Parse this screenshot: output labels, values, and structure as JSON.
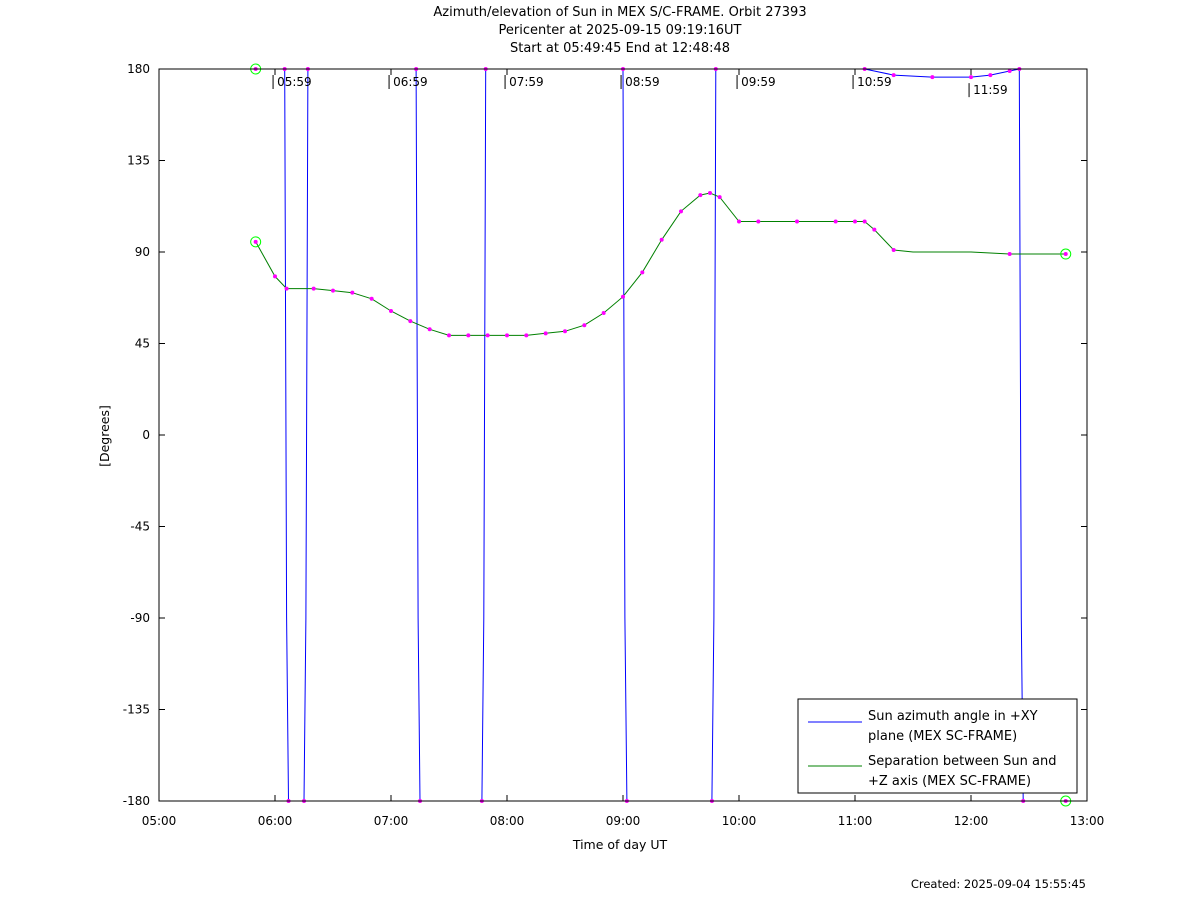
{
  "titles": [
    "Azimuth/elevation of Sun in MEX S/C-FRAME.  Orbit 27393",
    "Pericenter at 2025-09-15 09:19:16UT",
    "Start at 05:49:45 End at 12:48:48"
  ],
  "footer": "Created: 2025-09-04 15:55:45",
  "colors": {
    "azimuth": "#0000ff",
    "separation": "#008000",
    "markers": "#ff00ff",
    "endpoints": "#00ff00"
  },
  "chart_data": {
    "type": "line",
    "xlabel": "Time of day UT",
    "ylabel": "[Degrees]",
    "xlim": [
      "05:00",
      "13:00"
    ],
    "ylim": [
      -180,
      180
    ],
    "x_ticks": [
      "05:00",
      "06:00",
      "07:00",
      "08:00",
      "09:00",
      "10:00",
      "11:00",
      "12:00",
      "13:00"
    ],
    "y_ticks": [
      180,
      135,
      90,
      45,
      0,
      -45,
      -90,
      -135,
      -180
    ],
    "legend_position": "bottom-right",
    "hour_annotations": [
      "05:59",
      "06:59",
      "07:59",
      "08:59",
      "09:59",
      "10:59",
      "11:59"
    ],
    "series": [
      {
        "name": "Sun azimuth angle in +XY plane (MEX SC-FRAME)",
        "legend_lines": [
          "Sun azimuth angle in +XY",
          "plane (MEX SC-FRAME)"
        ],
        "points": [
          [
            "05:50",
            180
          ],
          [
            "06:05",
            180
          ],
          [
            "06:06",
            -90
          ],
          [
            "06:07",
            -180
          ],
          [
            "06:15",
            -180
          ],
          [
            "06:16",
            -90
          ],
          [
            "06:17",
            180
          ],
          [
            "07:13",
            180
          ],
          [
            "07:14",
            -90
          ],
          [
            "07:15",
            -180
          ],
          [
            "07:47",
            -180
          ],
          [
            "07:48",
            -90
          ],
          [
            "07:49",
            180
          ],
          [
            "09:00",
            180
          ],
          [
            "09:01",
            -90
          ],
          [
            "09:02",
            -180
          ],
          [
            "09:46",
            -180
          ],
          [
            "09:47",
            -90
          ],
          [
            "09:48",
            180
          ],
          [
            "11:05",
            180
          ],
          [
            "11:20",
            177
          ],
          [
            "11:40",
            176
          ],
          [
            "12:00",
            176
          ],
          [
            "12:10",
            177
          ],
          [
            "12:20",
            179
          ],
          [
            "12:25",
            180
          ],
          [
            "12:26",
            -90
          ],
          [
            "12:27",
            -180
          ],
          [
            "12:49",
            -180
          ]
        ]
      },
      {
        "name": "Separation between Sun and +Z axis (MEX SC-FRAME)",
        "legend_lines": [
          "Separation between Sun and",
          "+Z axis (MEX SC-FRAME)"
        ],
        "points": [
          [
            "05:50",
            95
          ],
          [
            "06:00",
            78
          ],
          [
            "06:06",
            72
          ],
          [
            "06:20",
            72
          ],
          [
            "06:30",
            71
          ],
          [
            "06:40",
            70
          ],
          [
            "06:50",
            67
          ],
          [
            "07:00",
            61
          ],
          [
            "07:10",
            56
          ],
          [
            "07:20",
            52
          ],
          [
            "07:30",
            49
          ],
          [
            "07:40",
            49
          ],
          [
            "07:50",
            49
          ],
          [
            "08:00",
            49
          ],
          [
            "08:10",
            49
          ],
          [
            "08:20",
            50
          ],
          [
            "08:30",
            51
          ],
          [
            "08:40",
            54
          ],
          [
            "08:50",
            60
          ],
          [
            "09:00",
            68
          ],
          [
            "09:10",
            80
          ],
          [
            "09:20",
            96
          ],
          [
            "09:30",
            110
          ],
          [
            "09:40",
            118
          ],
          [
            "09:45",
            119
          ],
          [
            "09:50",
            117
          ],
          [
            "10:00",
            105
          ],
          [
            "10:10",
            105
          ],
          [
            "10:30",
            105
          ],
          [
            "10:50",
            105
          ],
          [
            "11:00",
            105
          ],
          [
            "11:05",
            105
          ],
          [
            "11:10",
            101
          ],
          [
            "11:20",
            91
          ],
          [
            "11:30",
            90
          ],
          [
            "12:00",
            90
          ],
          [
            "12:20",
            89
          ],
          [
            "12:49",
            89
          ]
        ]
      }
    ]
  }
}
